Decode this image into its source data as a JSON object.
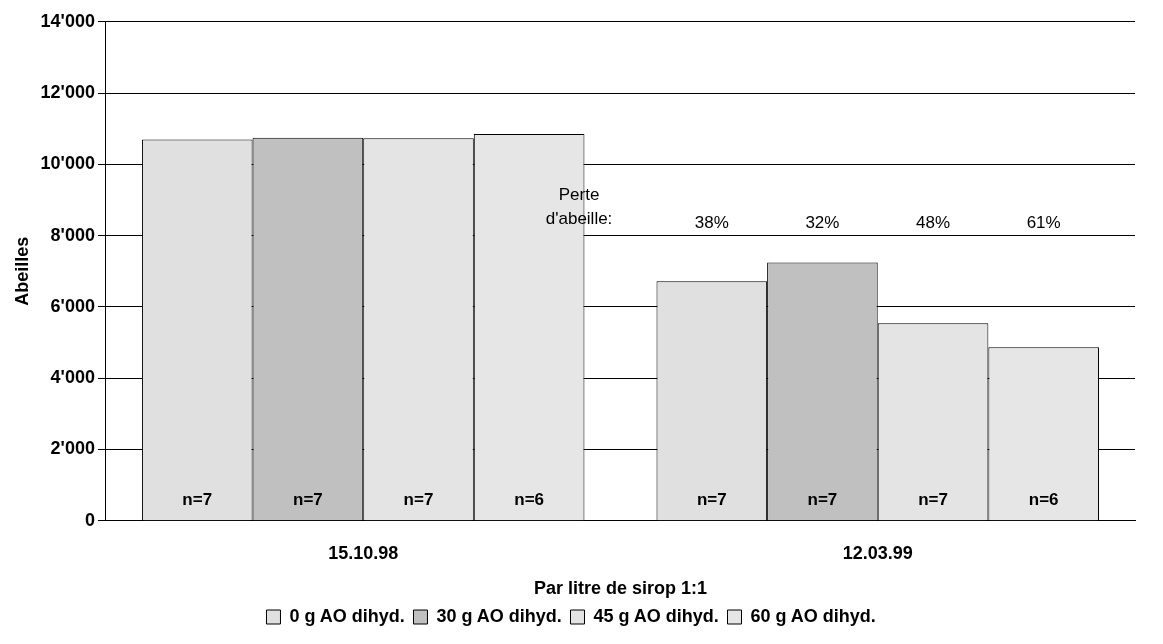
{
  "chart_data": {
    "type": "bar",
    "xlabel": "Par litre de sirop 1:1",
    "ylabel": "Abeilles",
    "categories": [
      "15.10.98",
      "12.03.99"
    ],
    "series": [
      {
        "name": "0 g AO dihyd.",
        "color": "#e0e0e0",
        "values": [
          10700,
          6720
        ]
      },
      {
        "name": "30 g AO dihyd.",
        "color": "#c0c0c0",
        "values": [
          10750,
          7250
        ]
      },
      {
        "name": "45 g AO dihyd.",
        "color": "#e4e4e4",
        "values": [
          10730,
          5540
        ]
      },
      {
        "name": "60 g AO dihyd.",
        "color": "#e6e6e6",
        "values": [
          10850,
          4870
        ]
      }
    ],
    "ylim": [
      0,
      14000
    ],
    "yticks": [
      {
        "value": 0,
        "label": "0"
      },
      {
        "value": 2000,
        "label": "2'000"
      },
      {
        "value": 4000,
        "label": "4'000"
      },
      {
        "value": 6000,
        "label": "6'000"
      },
      {
        "value": 8000,
        "label": "8'000"
      },
      {
        "value": 10000,
        "label": "10'000"
      },
      {
        "value": 12000,
        "label": "12'000"
      },
      {
        "value": 14000,
        "label": "14'000"
      }
    ],
    "grid": "y",
    "legend": "bottom",
    "annotations": [
      "Perte\nd'abeille:",
      "38%",
      "32%",
      "48%",
      "61%",
      "n=7",
      "n=7",
      "n=7",
      "n=6",
      "n=7",
      "n=7",
      "n=7",
      "n=6"
    ]
  }
}
